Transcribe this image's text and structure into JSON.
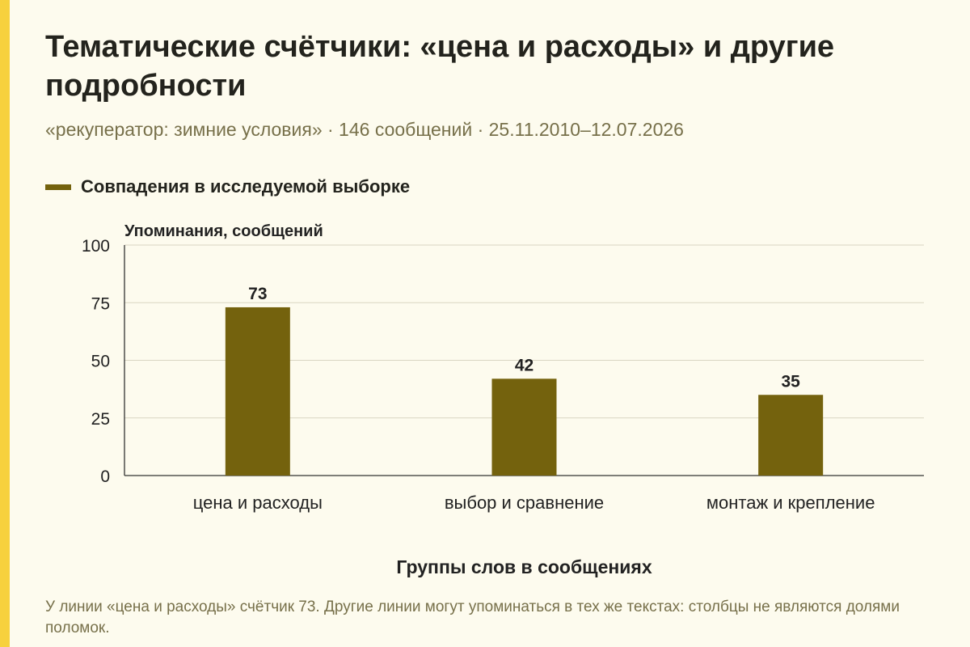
{
  "title": "Тематические счётчики: «цена и расходы» и другие подробности",
  "subtitle": "«рекуператор: зимние условия» · 146 сообщений · 25.11.2010–12.07.2026",
  "footnote": "У линии «цена и расходы» счётчик 73. Другие линии могут упоминаться в тех же текстах: столбцы не являются долями поломок.",
  "colors": {
    "accent": "#F7D13D",
    "bar": "#74620D",
    "background": "#FDFBEE",
    "grid": "#D9D5C2",
    "muted_text": "#77704A"
  },
  "chart_data": {
    "type": "bar",
    "categories": [
      "цена и расходы",
      "выбор и сравнение",
      "монтаж и крепление"
    ],
    "series": [
      {
        "name": "Совпадения в исследуемой выборке",
        "values": [
          73,
          42,
          35
        ]
      }
    ],
    "ylabel": "Упоминания, сообщений",
    "xlabel": "Группы слов в сообщениях",
    "ylim": [
      0,
      100
    ],
    "yticks": [
      0,
      25,
      50,
      75,
      100
    ],
    "grid": true,
    "legend": "top-left"
  }
}
